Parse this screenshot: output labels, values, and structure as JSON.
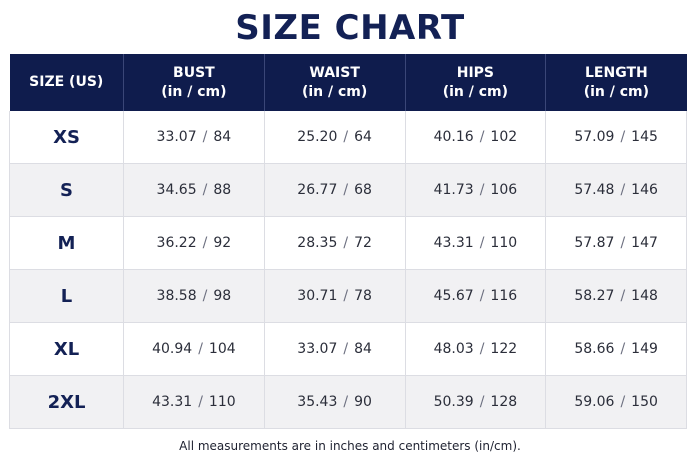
{
  "title": "SIZE CHART",
  "header": {
    "size": "SIZE (US)",
    "unit_label": "(in / cm)",
    "columns": [
      "BUST",
      "WAIST",
      "HIPS",
      "LENGTH"
    ]
  },
  "separator": "/",
  "rows": [
    {
      "size": "XS",
      "bust": {
        "in": "33.07",
        "cm": "84"
      },
      "waist": {
        "in": "25.20",
        "cm": "64"
      },
      "hips": {
        "in": "40.16",
        "cm": "102"
      },
      "length": {
        "in": "57.09",
        "cm": "145"
      }
    },
    {
      "size": "S",
      "bust": {
        "in": "34.65",
        "cm": "88"
      },
      "waist": {
        "in": "26.77",
        "cm": "68"
      },
      "hips": {
        "in": "41.73",
        "cm": "106"
      },
      "length": {
        "in": "57.48",
        "cm": "146"
      }
    },
    {
      "size": "M",
      "bust": {
        "in": "36.22",
        "cm": "92"
      },
      "waist": {
        "in": "28.35",
        "cm": "72"
      },
      "hips": {
        "in": "43.31",
        "cm": "110"
      },
      "length": {
        "in": "57.87",
        "cm": "147"
      }
    },
    {
      "size": "L",
      "bust": {
        "in": "38.58",
        "cm": "98"
      },
      "waist": {
        "in": "30.71",
        "cm": "78"
      },
      "hips": {
        "in": "45.67",
        "cm": "116"
      },
      "length": {
        "in": "58.27",
        "cm": "148"
      }
    },
    {
      "size": "XL",
      "bust": {
        "in": "40.94",
        "cm": "104"
      },
      "waist": {
        "in": "33.07",
        "cm": "84"
      },
      "hips": {
        "in": "48.03",
        "cm": "122"
      },
      "length": {
        "in": "58.66",
        "cm": "149"
      }
    },
    {
      "size": "2XL",
      "bust": {
        "in": "43.31",
        "cm": "110"
      },
      "waist": {
        "in": "35.43",
        "cm": "90"
      },
      "hips": {
        "in": "50.39",
        "cm": "128"
      },
      "length": {
        "in": "59.06",
        "cm": "150"
      }
    }
  ],
  "footnote": "All measurements are in inches and centimeters (in/cm).",
  "colors": {
    "header_bg": "#0f1c4d",
    "title": "#132155",
    "alt_row": "#f1f1f3"
  }
}
